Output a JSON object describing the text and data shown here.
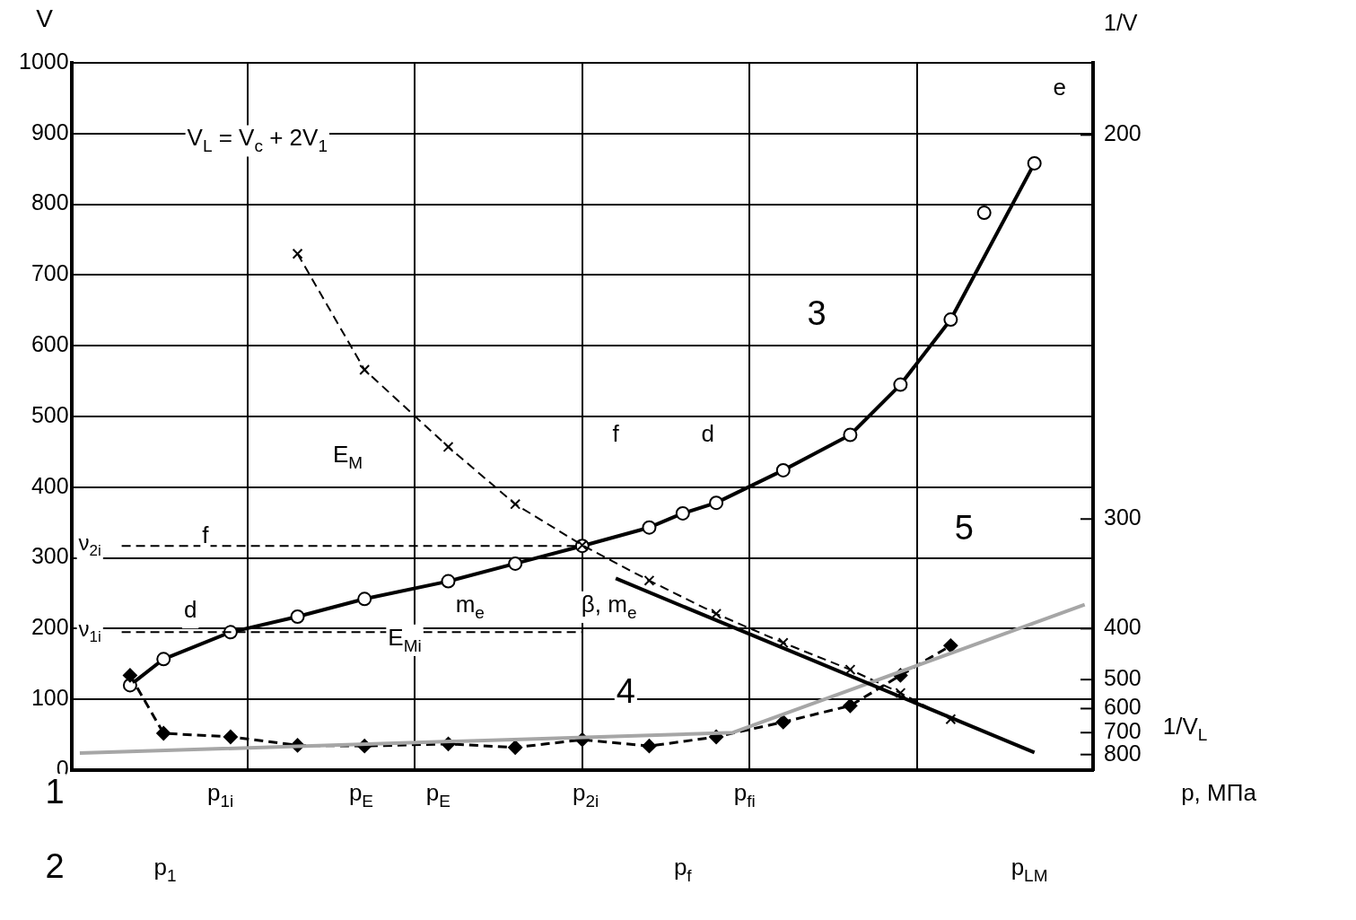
{
  "chart_data": {
    "type": "line",
    "xlabel": "p, МПа",
    "ylabel": "V",
    "categories": [
      null,
      null,
      null,
      null,
      null,
      null,
      null,
      null,
      null,
      null,
      null,
      null,
      null,
      null,
      null,
      null,
      null,
      null,
      null,
      null,
      null,
      null,
      null,
      null,
      null,
      null,
      null,
      null,
      null,
      null,
      null,
      null,
      null,
      null,
      null,
      null,
      null,
      null,
      null,
      null,
      null,
      null,
      null,
      null,
      null,
      null,
      null,
      null,
      null,
      null,
      null,
      null,
      null,
      null,
      null,
      null,
      null,
      null,
      null,
      null,
      null
    ],
    "ylim": [
      0,
      1000
    ],
    "yticks": [
      0,
      100,
      200,
      300,
      400,
      500,
      600,
      700,
      800,
      900,
      1000
    ],
    "grid": true,
    "legend": false,
    "tick_labels": "y",
    "series": [
      {
        "type": "line",
        "color": "#000000",
        "marker": "circle",
        "line_style": "solid",
        "values": [
          null,
          null,
          null,
          120,
          null,
          157,
          null,
          null,
          null,
          195,
          null,
          null,
          null,
          217,
          null,
          null,
          null,
          242,
          null,
          null,
          null,
          null,
          267,
          null,
          null,
          null,
          292,
          null,
          null,
          null,
          317,
          null,
          null,
          null,
          343,
          null,
          363,
          null,
          378,
          null,
          null,
          null,
          424,
          null,
          null,
          null,
          474,
          null,
          null,
          545,
          null,
          null,
          637,
          null,
          null,
          null,
          null,
          858,
          null,
          null,
          null
        ]
      },
      {
        "type": "scatter",
        "color": "#000000",
        "marker": "circle",
        "values": [
          null,
          null,
          null,
          null,
          null,
          null,
          null,
          null,
          null,
          null,
          null,
          null,
          null,
          null,
          null,
          null,
          null,
          null,
          null,
          null,
          null,
          null,
          null,
          null,
          null,
          null,
          null,
          null,
          null,
          null,
          null,
          null,
          null,
          null,
          null,
          null,
          null,
          null,
          null,
          null,
          null,
          null,
          null,
          null,
          null,
          null,
          null,
          null,
          null,
          null,
          null,
          null,
          null,
          null,
          788,
          null,
          null,
          null,
          null,
          null,
          null
        ]
      },
      {
        "type": "line",
        "color": "#000000",
        "marker": "cross",
        "line_style": "dashed",
        "values": [
          null,
          null,
          null,
          null,
          null,
          null,
          null,
          null,
          null,
          null,
          null,
          null,
          null,
          730,
          null,
          null,
          null,
          566,
          null,
          null,
          null,
          null,
          457,
          null,
          null,
          null,
          376,
          null,
          null,
          null,
          318,
          null,
          null,
          null,
          268,
          null,
          null,
          null,
          221,
          null,
          null,
          null,
          180,
          null,
          null,
          null,
          142,
          null,
          null,
          109,
          null,
          null,
          72,
          null,
          null,
          null,
          null,
          null,
          null,
          null,
          null
        ]
      },
      {
        "type": "line",
        "color": "#000000",
        "marker": "diamond",
        "line_style": "dashed",
        "values": [
          null,
          null,
          null,
          134,
          null,
          52,
          null,
          null,
          null,
          47,
          null,
          null,
          null,
          35,
          null,
          null,
          null,
          34,
          null,
          null,
          null,
          null,
          37,
          null,
          null,
          null,
          32,
          null,
          null,
          null,
          43,
          null,
          null,
          null,
          34,
          null,
          null,
          null,
          47,
          null,
          null,
          null,
          68,
          null,
          null,
          null,
          91,
          null,
          null,
          134,
          null,
          null,
          176,
          null,
          null,
          null,
          null,
          null,
          null,
          null,
          null
        ]
      },
      {
        "type": "line",
        "color": "#a6a6a6",
        "marker": "none",
        "line_style": "solid",
        "values": [
          24,
          null,
          null,
          null,
          null,
          null,
          null,
          null,
          null,
          null,
          null,
          null,
          null,
          null,
          null,
          null,
          null,
          null,
          null,
          null,
          null,
          null,
          null,
          null,
          null,
          null,
          null,
          null,
          null,
          null,
          null,
          null,
          null,
          null,
          null,
          null,
          null,
          null,
          null,
          53,
          null,
          null,
          null,
          null,
          null,
          null,
          null,
          null,
          null,
          null,
          null,
          null,
          null,
          null,
          null,
          null,
          null,
          null,
          null,
          null,
          234
        ]
      },
      {
        "type": "line",
        "color": "#000000",
        "marker": "none",
        "line_style": "solid",
        "values": [
          null,
          null,
          null,
          null,
          null,
          null,
          null,
          null,
          null,
          null,
          null,
          null,
          null,
          null,
          null,
          null,
          null,
          null,
          null,
          null,
          null,
          null,
          null,
          null,
          null,
          null,
          null,
          null,
          null,
          null,
          null,
          null,
          271,
          null,
          null,
          null,
          null,
          null,
          null,
          null,
          null,
          null,
          null,
          null,
          null,
          null,
          null,
          null,
          null,
          null,
          null,
          null,
          null,
          null,
          null,
          null,
          null,
          25,
          null,
          null,
          null
        ]
      }
    ],
    "ref_lines": [
      {
        "axis": "y",
        "value": 317,
        "label": "ν$_{2i}$",
        "line_style": "dashed"
      },
      {
        "axis": "y",
        "value": 195,
        "label": "ν$_{1i}$",
        "line_style": "dashed"
      }
    ],
    "annotations": [
      "V$_{L}$ = V$_{c}$ + 2V$_{1}$",
      "E$_{M}$",
      "E$_{Mi}$",
      "f",
      "d",
      "f",
      "d",
      "e",
      "3",
      "4",
      "5",
      "m$_{e}$",
      "β, m$_{e}$",
      "p$_{1i}$",
      "p$_{E}$",
      "p$_{E}$",
      "p$_{2i}$",
      "p$_{fi}$",
      "1",
      "2",
      "p$_{1}$",
      "p$_{f}$",
      "p$_{LM}$",
      "1/V$_{L}$",
      "1/V",
      "200",
      "300",
      "400",
      "500",
      "600",
      "700",
      "800"
    ]
  }
}
